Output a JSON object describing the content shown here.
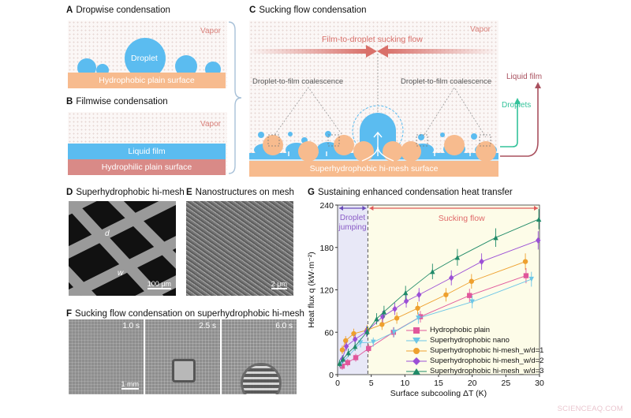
{
  "panels": {
    "A": {
      "letter": "A",
      "title": "Dropwise condensation",
      "vapor": "Vapor",
      "droplet": "Droplet",
      "surface": "Hydrophobic plain surface"
    },
    "B": {
      "letter": "B",
      "title": "Filmwise condensation",
      "vapor": "Vapor",
      "film": "Liquid film",
      "surface": "Hydrophilic plain surface"
    },
    "C": {
      "letter": "C",
      "title": "Sucking flow condensation",
      "vapor": "Vapor",
      "flow_label": "Film-to-droplet sucking flow",
      "coalescence_left": "Droplet-to-film coalescence",
      "coalescence_right": "Droplet-to-film coalescence",
      "surface": "Superhydrophobic hi-mesh surface",
      "side_liquid_film": "Liquid film",
      "side_droplets": "Droplets"
    },
    "D": {
      "letter": "D",
      "title": "Superhydrophobic  hi-mesh",
      "label_d": "d",
      "label_w": "w",
      "scale": "100 μm"
    },
    "E": {
      "letter": "E",
      "title": "Nanostructures  on mesh",
      "scale": "2 μm"
    },
    "F": {
      "letter": "F",
      "title": "Sucking  flow condensation  on superhydrophobic  hi-mesh",
      "frames": [
        {
          "time": "1.0 s"
        },
        {
          "time": "2.5 s"
        },
        {
          "time": "6.0 s"
        }
      ],
      "scale": "1 mm"
    },
    "G": {
      "letter": "G",
      "title": "Sustaining  enhanced  condensation  heat transfer",
      "region_left": [
        "Droplet",
        "jumping"
      ],
      "region_right": "Sucking flow"
    }
  },
  "colors": {
    "droplet_blue": "#5bbcf0",
    "hydrophobic_orange": "#f7bb8e",
    "hydrophilic_red": "#d98a87",
    "vapor_text": "#d9807a",
    "flow_arrow": "#d9706a",
    "droplets_green": "#33c29a",
    "liquid_film_maroon": "#a9505e"
  },
  "chart_data": {
    "type": "line",
    "title": "Sustaining enhanced condensation heat transfer",
    "xlabel": "Surface subcooling ΔT (K)",
    "ylabel": "Heat flux q (kW·m⁻²)",
    "xlim": [
      0,
      30
    ],
    "ylim": [
      0,
      240
    ],
    "xticks": [
      0,
      5,
      10,
      15,
      20,
      25,
      30
    ],
    "yticks": [
      0,
      60,
      120,
      180,
      240
    ],
    "grid": false,
    "legend_position": "lower right",
    "regions": [
      {
        "label": "Droplet jumping",
        "x_range": [
          0,
          4.5
        ],
        "color": "#e8e8f7"
      },
      {
        "label": "Sucking flow",
        "x_range": [
          4.5,
          30
        ],
        "color": "#fdfce8"
      }
    ],
    "series": [
      {
        "name": "Hydrophobic plain",
        "color": "#e0579b",
        "marker": "square",
        "x": [
          0.7,
          1.5,
          2.7,
          4.6,
          8.3,
          12.3,
          19.6,
          28.0
        ],
        "y": [
          12,
          17,
          24,
          37,
          60,
          82,
          112,
          140
        ]
      },
      {
        "name": "Superhydrophobic nano",
        "color": "#6cc6e6",
        "marker": "triangle-down",
        "x": [
          0.5,
          3.4,
          5.3,
          8.4,
          12.0,
          20.0,
          28.8
        ],
        "y": [
          15,
          45,
          46,
          60,
          80,
          103,
          135
        ]
      },
      {
        "name": "Superhydrophobic hi-mesh_w/d=1",
        "color": "#eea02e",
        "marker": "circle",
        "x": [
          0.7,
          1.2,
          2.4,
          4.4,
          6.6,
          8.8,
          11.9,
          16.1,
          19.9,
          27.9
        ],
        "y": [
          35,
          48,
          58,
          63,
          71,
          80,
          94,
          113,
          132,
          160
        ]
      },
      {
        "name": "Superhydrophobic hi-mesh_w/d=2",
        "color": "#9b4fd6",
        "marker": "diamond",
        "x": [
          0.7,
          1.3,
          2.6,
          4.3,
          6.7,
          8.5,
          10.2,
          12.1,
          16.9,
          21.4,
          29.8
        ],
        "y": [
          22,
          40,
          50,
          61,
          82,
          93,
          104,
          113,
          137,
          160,
          190
        ]
      },
      {
        "name": "Superhydrophobic hi-mesh_w/d=3",
        "color": "#1f8a68",
        "marker": "triangle-up",
        "x": [
          0.3,
          0.8,
          1.6,
          2.6,
          4.4,
          5.8,
          6.9,
          10.1,
          14.1,
          17.8,
          23.5,
          29.9
        ],
        "y": [
          16,
          22,
          31,
          40,
          61,
          79,
          89,
          116,
          146,
          166,
          194,
          220
        ]
      }
    ]
  },
  "watermark": "SCIENCEAQ.COM"
}
